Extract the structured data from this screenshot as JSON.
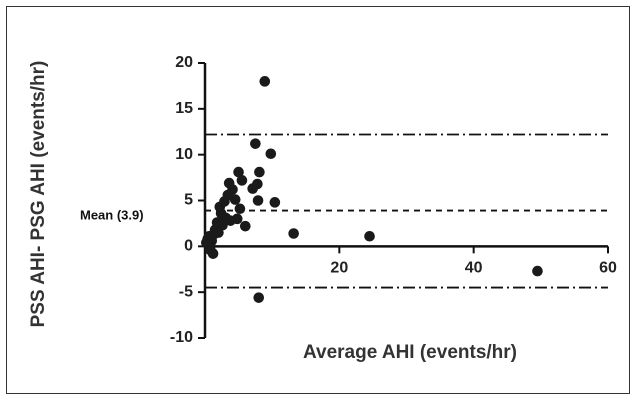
{
  "chart_data": {
    "type": "scatter",
    "xlabel": "Average AHI (events/hr)",
    "ylabel": "PSS AHI- PSG AHI (events/hr)",
    "xlim": [
      0,
      60
    ],
    "ylim": [
      -10,
      20
    ],
    "x_ticks": [
      "20",
      "40",
      "60"
    ],
    "y_ticks": [
      "20",
      "15",
      "10",
      "5",
      "0",
      "-5",
      "-10"
    ],
    "mean_label": "Mean (3.9)",
    "reference_lines": [
      {
        "y": 12.2,
        "style": "dash-dot"
      },
      {
        "y": 3.9,
        "style": "dashed"
      },
      {
        "y": -4.5,
        "style": "dash-dot"
      }
    ],
    "points": [
      {
        "x": 0.2,
        "y": 0.4
      },
      {
        "x": 0.4,
        "y": 0.8
      },
      {
        "x": 0.6,
        "y": 1.1
      },
      {
        "x": 0.8,
        "y": -0.4
      },
      {
        "x": 1.0,
        "y": 0.6
      },
      {
        "x": 1.2,
        "y": -0.8
      },
      {
        "x": 1.3,
        "y": 1.3
      },
      {
        "x": 1.5,
        "y": 1.8
      },
      {
        "x": 1.8,
        "y": 2.6
      },
      {
        "x": 2.0,
        "y": 1.5
      },
      {
        "x": 2.2,
        "y": 4.3
      },
      {
        "x": 2.4,
        "y": 3.6
      },
      {
        "x": 2.6,
        "y": 2.3
      },
      {
        "x": 2.9,
        "y": 4.9
      },
      {
        "x": 3.1,
        "y": 3.1
      },
      {
        "x": 3.4,
        "y": 5.6
      },
      {
        "x": 3.6,
        "y": 6.9
      },
      {
        "x": 3.8,
        "y": 2.8
      },
      {
        "x": 4.1,
        "y": 6.2
      },
      {
        "x": 4.5,
        "y": 5.1
      },
      {
        "x": 4.8,
        "y": 3.0
      },
      {
        "x": 5.0,
        "y": 8.1
      },
      {
        "x": 5.2,
        "y": 4.1
      },
      {
        "x": 5.5,
        "y": 7.2
      },
      {
        "x": 6.0,
        "y": 2.2
      },
      {
        "x": 7.1,
        "y": 6.3
      },
      {
        "x": 7.5,
        "y": 11.2
      },
      {
        "x": 7.8,
        "y": 6.8
      },
      {
        "x": 8.1,
        "y": 8.1
      },
      {
        "x": 7.9,
        "y": 5.0
      },
      {
        "x": 8.0,
        "y": -5.6
      },
      {
        "x": 8.9,
        "y": 18.0
      },
      {
        "x": 9.8,
        "y": 10.1
      },
      {
        "x": 10.4,
        "y": 4.8
      },
      {
        "x": 13.2,
        "y": 1.4
      },
      {
        "x": 24.5,
        "y": 1.1
      },
      {
        "x": 49.5,
        "y": -2.7
      }
    ],
    "grid": false,
    "legend": "none"
  }
}
